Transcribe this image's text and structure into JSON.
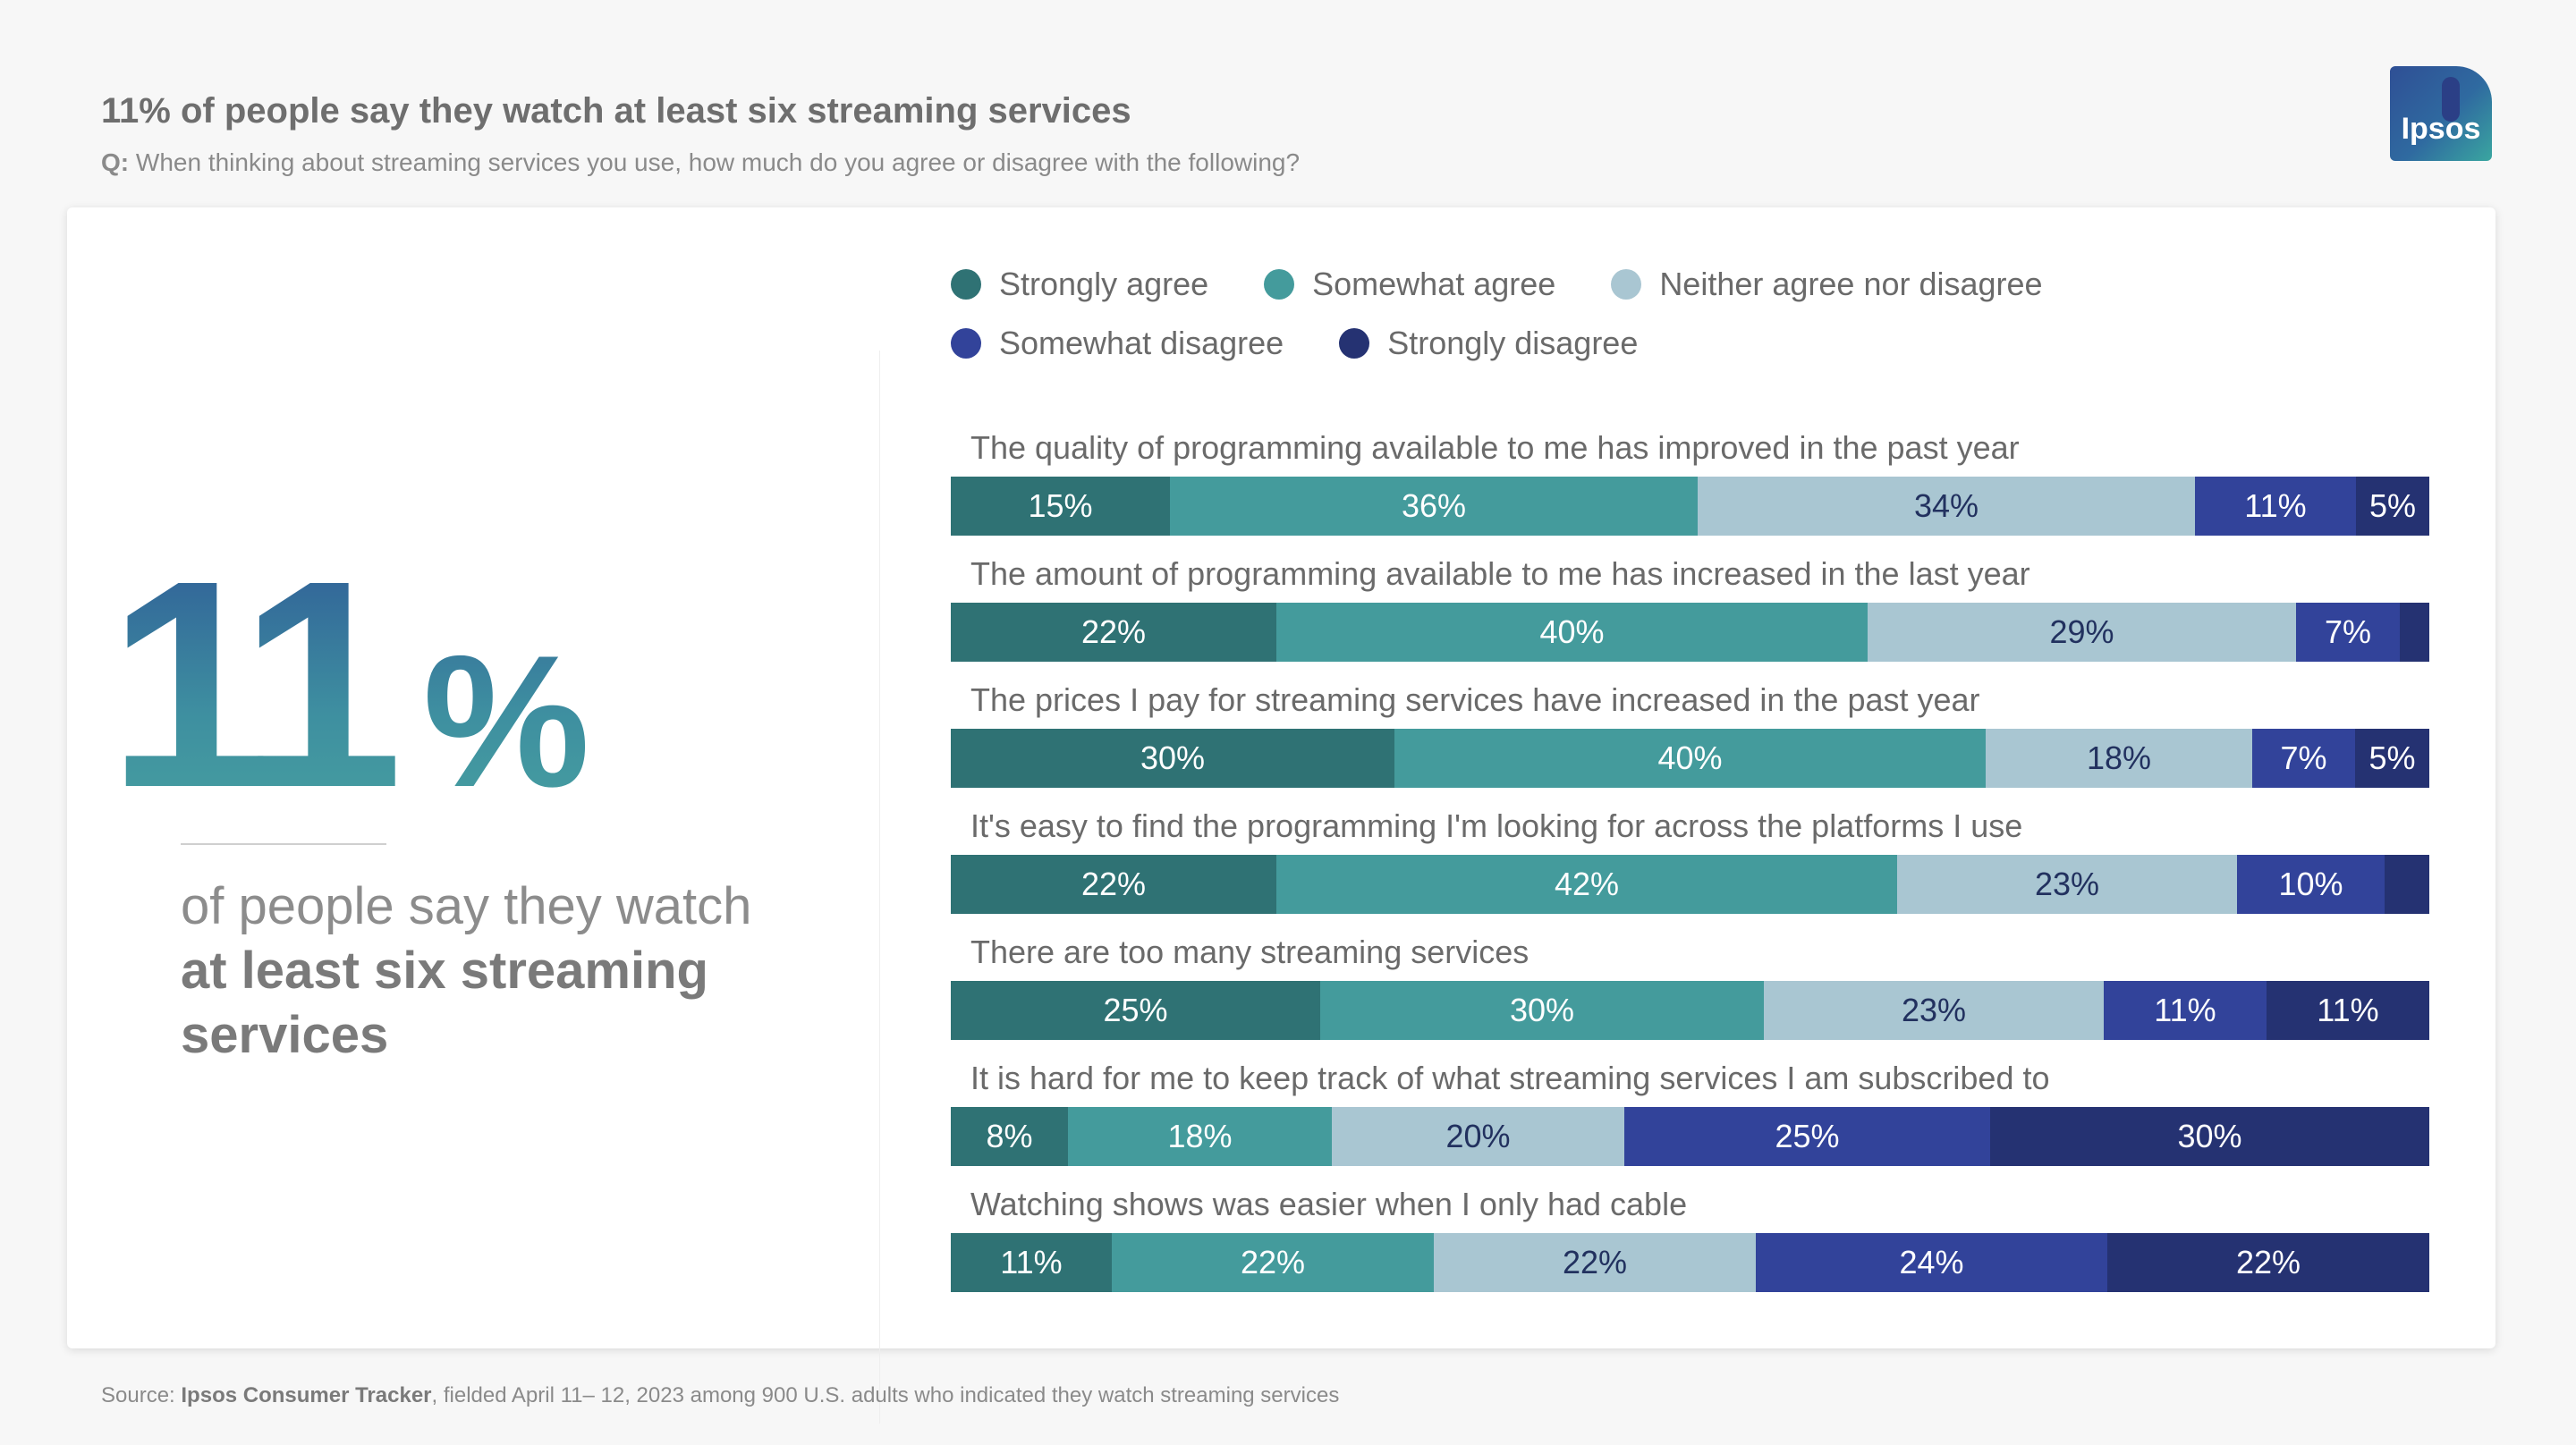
{
  "header": {
    "title": "11% of people say they watch at least six streaming services",
    "subtitle_prefix": "Q:",
    "subtitle": " When thinking about streaming services you use, how much do you agree or disagree with the following?"
  },
  "logo": {
    "text": "Ipsos"
  },
  "stat": {
    "number": "11",
    "percent": "%",
    "text_before": "of people say they watch ",
    "text_bold": "at least six streaming services"
  },
  "source": {
    "prefix": "Source: ",
    "name": "Ipsos Consumer Tracker",
    "rest": ", fielded April 11– 12, 2023 among 900 U.S. adults who indicated they watch streaming services"
  },
  "chart_data": {
    "type": "bar",
    "orientation": "horizontal-stacked-100",
    "legend": [
      {
        "name": "Strongly agree",
        "color": "#2f7274"
      },
      {
        "name": "Somewhat agree",
        "color": "#449b9c"
      },
      {
        "name": "Neither agree nor disagree",
        "color": "#a9c6d2"
      },
      {
        "name": "Somewhat disagree",
        "color": "#32439a"
      },
      {
        "name": "Strongly disagree",
        "color": "#253272"
      }
    ],
    "label_colors": [
      "#ffffff",
      "#ffffff",
      "#22315f",
      "#ffffff",
      "#ffffff"
    ],
    "categories": [
      "The quality of programming available to me has improved in the past year",
      "The amount of programming available to me has increased in the last year",
      "The prices I pay for streaming services have increased in the past year",
      "It's easy to find the programming I'm looking for across the platforms I use",
      "There are too many streaming services",
      "It is hard for me to keep track of what streaming services I am subscribed to",
      "Watching shows was easier when I only had cable"
    ],
    "series": [
      {
        "name": "Strongly agree",
        "values": [
          15,
          22,
          30,
          22,
          25,
          8,
          11
        ]
      },
      {
        "name": "Somewhat agree",
        "values": [
          36,
          40,
          40,
          42,
          30,
          18,
          22
        ]
      },
      {
        "name": "Neither agree nor disagree",
        "values": [
          34,
          29,
          18,
          23,
          23,
          20,
          22
        ]
      },
      {
        "name": "Somewhat disagree",
        "values": [
          11,
          7,
          7,
          10,
          11,
          25,
          24
        ]
      },
      {
        "name": "Strongly disagree",
        "values": [
          5,
          2,
          5,
          3,
          11,
          30,
          22
        ]
      }
    ],
    "hidden_labels": [
      [
        4,
        1
      ],
      [
        4,
        3
      ]
    ]
  }
}
